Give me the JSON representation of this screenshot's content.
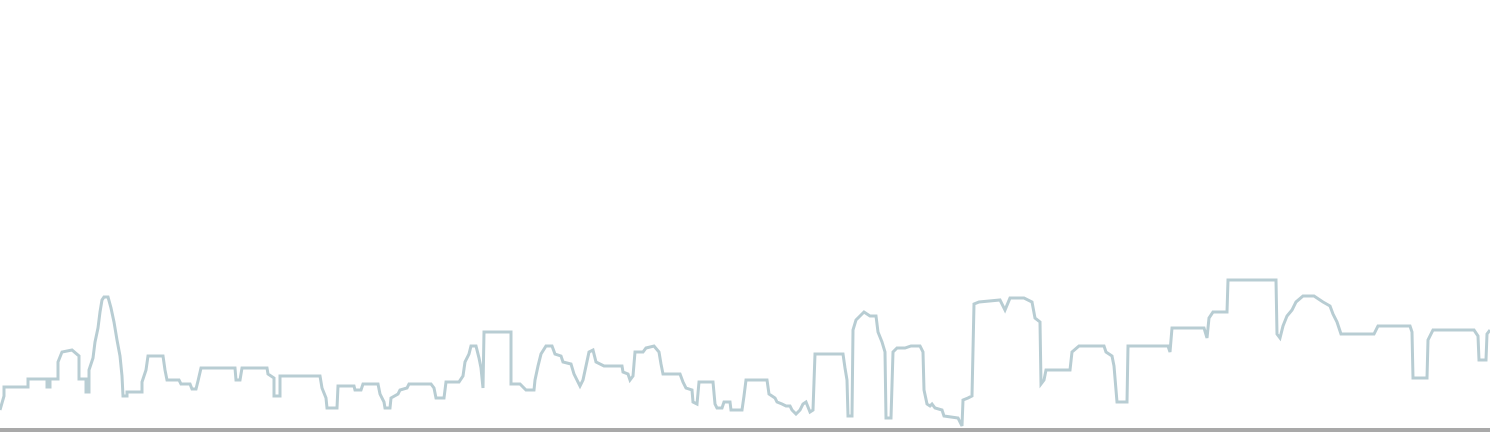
{
  "illustration": {
    "skyline_stroke_color": "#b8cdd3",
    "ground_line_color": "#a9a9a9",
    "background_color": "#ffffff"
  }
}
